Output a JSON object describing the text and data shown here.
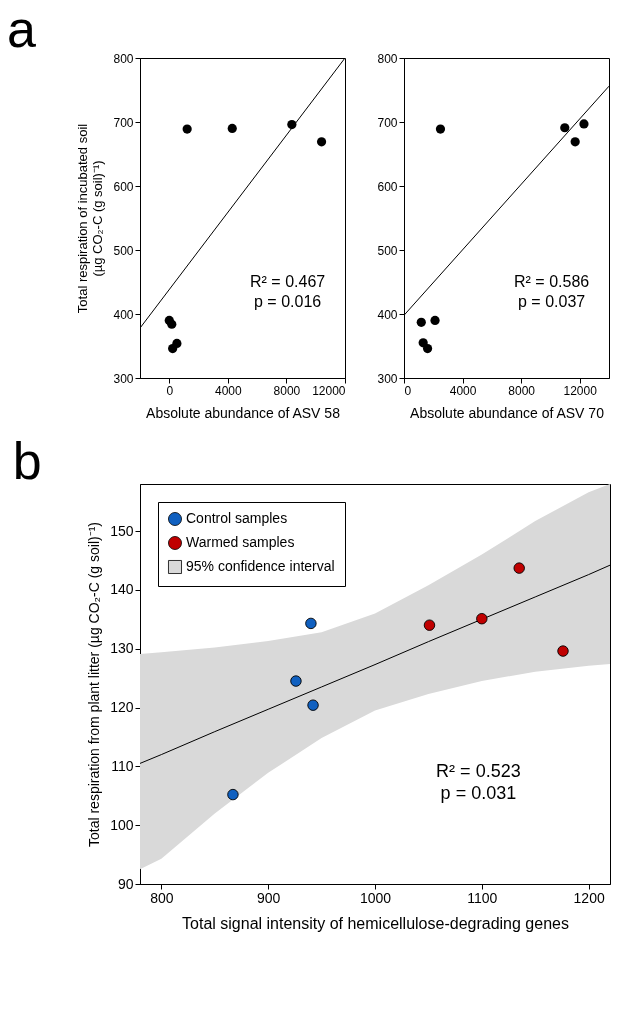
{
  "chart_data": [
    {
      "type": "scatter",
      "title": "a",
      "xlabel": "Absolute abundance of ASV 58",
      "ylabel": "Total respiration of incubated soil\n(µg CO₂-C (g soil)⁻¹)",
      "xlim": [
        -2000,
        12000
      ],
      "xticks": [
        0,
        4000,
        8000,
        12000
      ],
      "ylim": [
        300,
        800
      ],
      "yticks": [
        300,
        400,
        500,
        600,
        700,
        800
      ],
      "grid": false,
      "annotations": [
        "R² = 0.467",
        "p = 0.016"
      ],
      "series": [
        {
          "type": "scatter",
          "marker": "circle",
          "color": "#000000",
          "x": [
            0,
            170,
            230,
            520,
            1220,
            4300,
            8370,
            10400
          ],
          "values": [
            390,
            384,
            346,
            354,
            689,
            690,
            696,
            669
          ]
        },
        {
          "type": "line",
          "color": "#000000",
          "x": [
            -2000,
            12000
          ],
          "values": [
            378,
            800
          ]
        }
      ]
    },
    {
      "type": "scatter",
      "xlabel": "Absolute abundance of ASV 70",
      "xlim": [
        0,
        14000
      ],
      "xticks": [
        0,
        4000,
        8000,
        12000
      ],
      "ylim": [
        300,
        800
      ],
      "yticks": [
        300,
        400,
        500,
        600,
        700,
        800
      ],
      "grid": false,
      "annotations": [
        "R² = 0.586",
        "p = 0.037"
      ],
      "series": [
        {
          "type": "scatter",
          "marker": "circle",
          "color": "#000000",
          "x": [
            1180,
            1310,
            1610,
            2120,
            2490,
            10980,
            11690,
            12290
          ],
          "values": [
            387,
            355,
            346,
            390,
            689,
            691,
            669,
            697
          ]
        },
        {
          "type": "line",
          "color": "#000000",
          "x": [
            0,
            14000
          ],
          "values": [
            398,
            756
          ]
        }
      ]
    },
    {
      "type": "scatter",
      "title": "b",
      "xlabel": "Total signal intensity of hemicellulose-degrading genes",
      "ylabel": "Total respiration from plant litter (µg CO₂-C (g soil)⁻¹)",
      "xlim": [
        780,
        1220
      ],
      "xticks": [
        800,
        900,
        1000,
        1100,
        1200
      ],
      "ylim": [
        90,
        158
      ],
      "yticks": [
        90,
        100,
        110,
        120,
        130,
        140,
        150
      ],
      "grid": false,
      "legend": "top left",
      "annotations": [
        "R² = 0.523",
        "p = 0.031"
      ],
      "series": [
        {
          "type": "scatter",
          "marker": "circle",
          "name": "Control samples",
          "color": "#1060c0",
          "x": [
            940,
            926,
            942,
            867
          ],
          "values": [
            134.3,
            124.5,
            120.4,
            105.2
          ]
        },
        {
          "type": "scatter",
          "marker": "circle",
          "name": "Warmed samples",
          "color": "#c00000",
          "x": [
            1051,
            1100,
            1135,
            1176
          ],
          "values": [
            134.0,
            135.1,
            143.7,
            129.6
          ]
        },
        {
          "type": "line",
          "name": "95% confidence interval",
          "color": "#000000",
          "x": [
            780,
            800,
            850,
            900,
            950,
            1000,
            1050,
            1100,
            1150,
            1200,
            1220
          ],
          "values": [
            110.5,
            112.0,
            115.9,
            119.7,
            123.5,
            127.3,
            131.2,
            135.0,
            138.8,
            142.6,
            144.2
          ],
          "lower": [
            92.5,
            94.3,
            102.0,
            108.9,
            114.8,
            119.5,
            122.3,
            124.5,
            126.1,
            127.1,
            127.4
          ],
          "upper": [
            129.1,
            129.4,
            130.2,
            131.3,
            132.8,
            136.0,
            140.8,
            146.0,
            151.7,
            156.6,
            158
          ]
        }
      ]
    }
  ]
}
